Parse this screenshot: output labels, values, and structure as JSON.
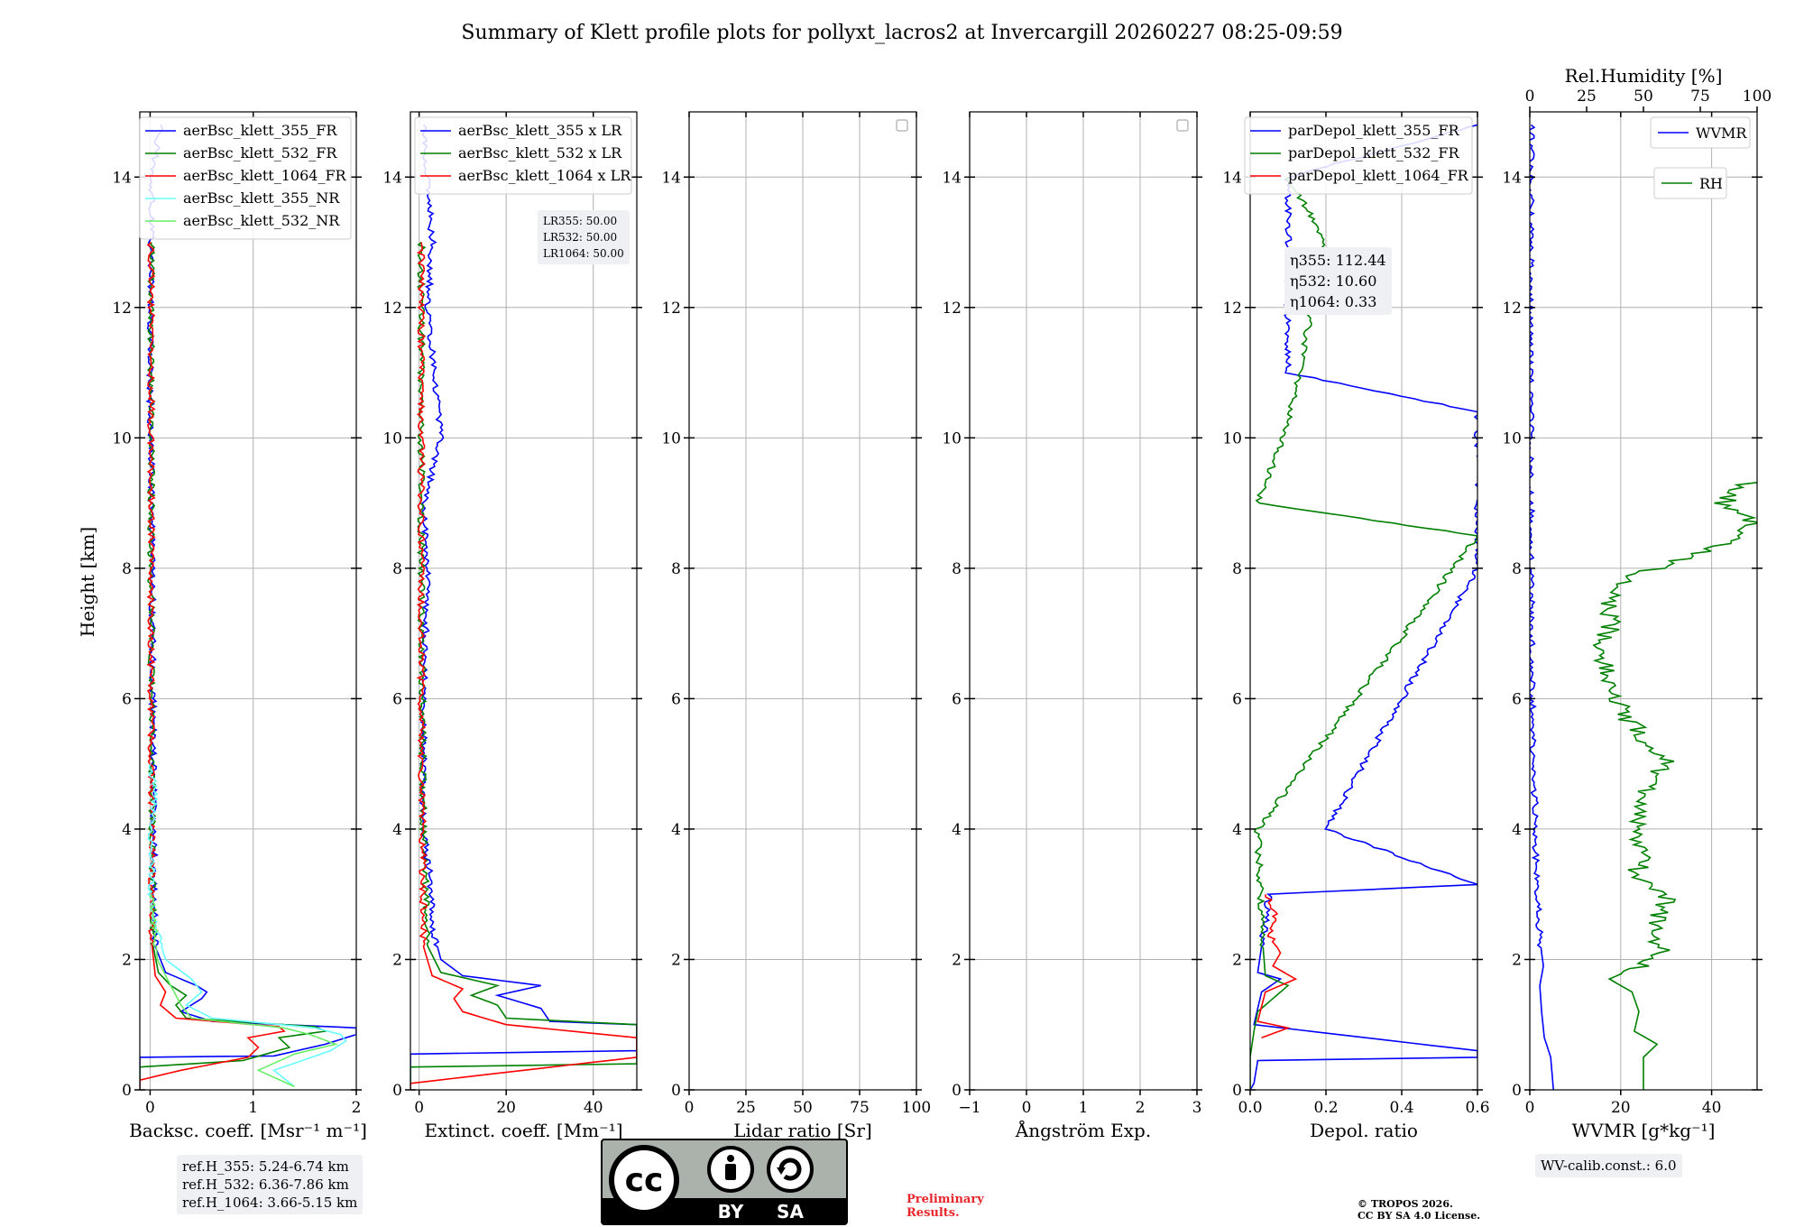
{
  "title": "Summary of Klett profile plots for pollyxt_lacros2 at Invercargill 20260227 08:25-09:59",
  "ylabel": "Height [km]",
  "colors": {
    "blue": "#0000ff",
    "green": "#008000",
    "red": "#ff0000",
    "cyan": "#66ffff",
    "lightgreen": "#66ee66"
  },
  "info": {
    "ref355": "ref.H_355: 5.24-6.74 km",
    "ref532": "ref.H_532: 6.36-7.86 km",
    "ref1064": "ref.H_1064: 3.66-5.15 km",
    "wv_calib": "WV-calib.const.: 6.0",
    "lr355": "LR355: 50.00",
    "lr532": "LR532: 50.00",
    "lr1064": "LR1064: 50.00",
    "eta355": "η355: 112.44",
    "eta532": "η532: 10.60",
    "eta1064": "η1064: 0.33"
  },
  "footer": {
    "prelim_1": "Preliminary",
    "prelim_2": "Results.",
    "copyright_1": "© TROPOS 2026.",
    "copyright_2": "CC BY SA 4.0 License.",
    "cc_text": "cc",
    "cc_by": "BY",
    "cc_sa": "SA"
  },
  "chart_data": [
    {
      "type": "line",
      "xlabel": "Backsc. coeff. [Msr⁻¹ m⁻¹]",
      "xlim": [
        -0.1,
        2
      ],
      "ylim": [
        0,
        15
      ],
      "xticks": [
        0,
        1,
        2
      ],
      "yticks": [
        0,
        2,
        4,
        6,
        8,
        10,
        12,
        14
      ],
      "legend_position": "top-right",
      "series": [
        {
          "name": "aerBsc_klett_355_FR",
          "color": "blue",
          "profile": [
            [
              0.0,
              -0.1
            ],
            [
              0.5,
              -0.1
            ],
            [
              0.52,
              1.2
            ],
            [
              0.7,
              1.7
            ],
            [
              0.85,
              2.0
            ],
            [
              0.95,
              2.0
            ],
            [
              1.05,
              0.6
            ],
            [
              1.2,
              0.3
            ],
            [
              1.4,
              0.5
            ],
            [
              1.5,
              0.55
            ],
            [
              1.6,
              0.45
            ],
            [
              1.8,
              0.15
            ],
            [
              2.2,
              0.05
            ],
            [
              3,
              0.04
            ],
            [
              5,
              0.03
            ],
            [
              8,
              0.02
            ],
            [
              11,
              0.0
            ],
            [
              14,
              0.02
            ],
            [
              14.8,
              0.1
            ]
          ]
        },
        {
          "name": "aerBsc_klett_532_FR",
          "color": "green",
          "profile": [
            [
              0.0,
              -0.1
            ],
            [
              0.35,
              -0.1
            ],
            [
              0.45,
              0.9
            ],
            [
              0.65,
              1.35
            ],
            [
              0.8,
              1.25
            ],
            [
              0.9,
              1.7
            ],
            [
              0.97,
              1.6
            ],
            [
              1.1,
              0.35
            ],
            [
              1.3,
              0.25
            ],
            [
              1.45,
              0.35
            ],
            [
              1.6,
              0.2
            ],
            [
              1.8,
              0.08
            ],
            [
              2.2,
              0.03
            ],
            [
              4,
              0.02
            ],
            [
              8,
              0.01
            ],
            [
              13,
              0.01
            ]
          ]
        },
        {
          "name": "aerBsc_klett_1064_FR",
          "color": "red",
          "profile": [
            [
              0.0,
              -0.1
            ],
            [
              0.15,
              -0.1
            ],
            [
              0.3,
              0.3
            ],
            [
              0.5,
              0.95
            ],
            [
              0.65,
              1.05
            ],
            [
              0.8,
              0.95
            ],
            [
              0.9,
              1.3
            ],
            [
              0.97,
              1.25
            ],
            [
              1.1,
              0.25
            ],
            [
              1.3,
              0.1
            ],
            [
              1.5,
              0.15
            ],
            [
              1.75,
              0.05
            ],
            [
              2.2,
              0.02
            ],
            [
              6,
              0.01
            ],
            [
              13,
              0.01
            ]
          ]
        },
        {
          "name": "aerBsc_klett_355_NR",
          "color": "cyan",
          "profile": [
            [
              0.05,
              1.4
            ],
            [
              0.3,
              1.2
            ],
            [
              0.6,
              1.75
            ],
            [
              0.75,
              1.9
            ],
            [
              0.85,
              1.85
            ],
            [
              0.95,
              1.6
            ],
            [
              1.1,
              0.6
            ],
            [
              1.3,
              0.35
            ],
            [
              1.5,
              0.5
            ],
            [
              1.7,
              0.4
            ],
            [
              2.0,
              0.15
            ],
            [
              2.5,
              0.05
            ],
            [
              3,
              0.0
            ],
            [
              3.5,
              0.02
            ],
            [
              4,
              0.0
            ],
            [
              4.5,
              0.05
            ],
            [
              5.0,
              0.0
            ]
          ]
        },
        {
          "name": "aerBsc_klett_532_NR",
          "color": "lightgreen",
          "profile": [
            [
              0.05,
              1.4
            ],
            [
              0.3,
              1.05
            ],
            [
              0.55,
              1.4
            ],
            [
              0.7,
              1.8
            ],
            [
              0.85,
              1.55
            ],
            [
              0.95,
              1.3
            ],
            [
              1.1,
              0.4
            ],
            [
              1.3,
              0.3
            ],
            [
              1.6,
              0.2
            ],
            [
              2.0,
              0.07
            ],
            [
              3,
              0.02
            ]
          ]
        }
      ]
    },
    {
      "type": "line",
      "xlabel": "Extinct. coeff. [Mm⁻¹]",
      "xlim": [
        -2,
        50
      ],
      "ylim": [
        0,
        15
      ],
      "xticks": [
        0,
        20,
        40
      ],
      "yticks": [
        0,
        2,
        4,
        6,
        8,
        10,
        12,
        14
      ],
      "legend_position": "top-right",
      "series": [
        {
          "name": "aerBsc_klett_355 x LR",
          "color": "blue",
          "profile": [
            [
              0.0,
              -2
            ],
            [
              0.55,
              -2
            ],
            [
              0.6,
              50
            ],
            [
              0.9,
              50
            ],
            [
              1.0,
              50
            ],
            [
              1.05,
              30
            ],
            [
              1.25,
              28
            ],
            [
              1.45,
              18
            ],
            [
              1.6,
              28
            ],
            [
              1.75,
              10
            ],
            [
              2.0,
              5
            ],
            [
              2.5,
              3
            ],
            [
              3,
              3
            ],
            [
              4,
              1
            ],
            [
              6,
              1
            ],
            [
              8,
              2
            ],
            [
              9,
              1
            ],
            [
              10,
              5
            ],
            [
              12,
              2
            ],
            [
              13,
              3
            ],
            [
              14.8,
              1
            ]
          ]
        },
        {
          "name": "aerBsc_klett_532 x LR",
          "color": "green",
          "profile": [
            [
              0.0,
              -2
            ],
            [
              0.35,
              -2
            ],
            [
              0.4,
              50
            ],
            [
              1.0,
              50
            ],
            [
              1.1,
              20
            ],
            [
              1.3,
              18
            ],
            [
              1.45,
              12
            ],
            [
              1.6,
              18
            ],
            [
              1.8,
              5
            ],
            [
              2.2,
              2
            ],
            [
              4,
              1
            ],
            [
              8,
              0.5
            ],
            [
              13,
              0.5
            ]
          ]
        },
        {
          "name": "aerBsc_klett_1064 x LR",
          "color": "red",
          "profile": [
            [
              0.0,
              -2
            ],
            [
              0.1,
              -2
            ],
            [
              0.5,
              50
            ],
            [
              0.8,
              50
            ],
            [
              1.0,
              20
            ],
            [
              1.2,
              10
            ],
            [
              1.4,
              8
            ],
            [
              1.55,
              10
            ],
            [
              1.75,
              3
            ],
            [
              2.2,
              1
            ],
            [
              6,
              0.5
            ],
            [
              13,
              0.5
            ]
          ]
        }
      ]
    },
    {
      "type": "line",
      "xlabel": "Lidar ratio [Sr]",
      "xlim": [
        0,
        100
      ],
      "ylim": [
        0,
        15
      ],
      "xticks": [
        0,
        25,
        50,
        75,
        100
      ],
      "yticks": [
        0,
        2,
        4,
        6,
        8,
        10,
        12,
        14
      ],
      "series": []
    },
    {
      "type": "line",
      "xlabel": "Ångström Exp.",
      "xlim": [
        -1,
        3
      ],
      "ylim": [
        0,
        15
      ],
      "xticks": [
        -1,
        0,
        1,
        2,
        3
      ],
      "yticks": [
        0,
        2,
        4,
        6,
        8,
        10,
        12,
        14
      ],
      "series": []
    },
    {
      "type": "line",
      "xlabel": "Depol. ratio",
      "xlim": [
        0,
        0.6
      ],
      "ylim": [
        0,
        15
      ],
      "xticks": [
        0.0,
        0.2,
        0.4,
        0.6
      ],
      "xtick_labels": [
        "0.0",
        "0.2",
        "0.4",
        "0.6"
      ],
      "yticks": [
        0,
        2,
        4,
        6,
        8,
        10,
        12,
        14
      ],
      "legend_position": "top-right",
      "series": [
        {
          "name": "parDepol_klett_355_FR",
          "color": "blue",
          "profile": [
            [
              0.0,
              0.0
            ],
            [
              0.1,
              0.01
            ],
            [
              0.45,
              0.02
            ],
            [
              0.5,
              0.6
            ],
            [
              0.6,
              0.6
            ],
            [
              1.0,
              0.01
            ],
            [
              1.5,
              0.03
            ],
            [
              1.7,
              0.08
            ],
            [
              1.8,
              0.02
            ],
            [
              3,
              0.05
            ],
            [
              3.15,
              0.6
            ],
            [
              4,
              0.2
            ],
            [
              8,
              0.6
            ],
            [
              10.4,
              0.6
            ],
            [
              11,
              0.1
            ],
            [
              14,
              0.1
            ],
            [
              14.8,
              0.6
            ]
          ]
        },
        {
          "name": "parDepol_klett_532_FR",
          "color": "green",
          "profile": [
            [
              0.0,
              0.0
            ],
            [
              0.5,
              0.0
            ],
            [
              0.9,
              0.01
            ],
            [
              1.2,
              0.02
            ],
            [
              1.6,
              0.1
            ],
            [
              1.75,
              0.04
            ],
            [
              2.5,
              0.03
            ],
            [
              4,
              0.02
            ],
            [
              8.5,
              0.6
            ],
            [
              9,
              0.02
            ],
            [
              10.2,
              0.1
            ],
            [
              13,
              0.2
            ],
            [
              14,
              0.1
            ]
          ]
        },
        {
          "name": "parDepol_klett_1064_FR",
          "color": "red",
          "profile": [
            [
              0.8,
              0.03
            ],
            [
              0.95,
              0.1
            ],
            [
              1.05,
              0.02
            ],
            [
              1.5,
              0.04
            ],
            [
              1.7,
              0.12
            ],
            [
              1.9,
              0.06
            ],
            [
              2.1,
              0.08
            ],
            [
              2.4,
              0.05
            ],
            [
              2.7,
              0.07
            ],
            [
              3.0,
              0.04
            ]
          ]
        }
      ]
    },
    {
      "type": "line",
      "xlabel": "WVMR [g*kg⁻¹]",
      "x2label": "Rel.Humidity [%]",
      "xlim": [
        0,
        50
      ],
      "x2lim": [
        0,
        100
      ],
      "ylim": [
        0,
        15
      ],
      "xticks": [
        0,
        20,
        40
      ],
      "x2ticks": [
        0,
        25,
        50,
        75,
        100
      ],
      "yticks": [
        0,
        2,
        4,
        6,
        8,
        10,
        12,
        14
      ],
      "series": [
        {
          "name": "WVMR",
          "color": "blue",
          "profile": [
            [
              0.0,
              5.2
            ],
            [
              0.5,
              4.6
            ],
            [
              0.8,
              3.2
            ],
            [
              1.2,
              2.6
            ],
            [
              1.6,
              2.2
            ],
            [
              1.9,
              3.0
            ],
            [
              2.1,
              2.6
            ],
            [
              2.5,
              2.0
            ],
            [
              3.0,
              1.6
            ],
            [
              4.0,
              1.2
            ],
            [
              5.0,
              0.9
            ],
            [
              6.0,
              0.5
            ],
            [
              7.0,
              0.3
            ],
            [
              9.0,
              0.2
            ],
            [
              11.0,
              0.1
            ],
            [
              13.0,
              0.15
            ],
            [
              14.8,
              0.3
            ]
          ]
        },
        {
          "name": "RH",
          "color": "green",
          "profile": [
            [
              0.0,
              50
            ],
            [
              0.5,
              50
            ],
            [
              0.7,
              56
            ],
            [
              0.9,
              46
            ],
            [
              1.2,
              48
            ],
            [
              1.5,
              45
            ],
            [
              1.7,
              35
            ],
            [
              1.9,
              48
            ],
            [
              2.1,
              60
            ],
            [
              2.4,
              54
            ],
            [
              2.8,
              58
            ],
            [
              3.0,
              60
            ],
            [
              3.3,
              46
            ],
            [
              3.6,
              52
            ],
            [
              4.0,
              45
            ],
            [
              4.5,
              50
            ],
            [
              5.0,
              60
            ],
            [
              5.2,
              55
            ],
            [
              5.8,
              40
            ],
            [
              6.2,
              36
            ],
            [
              6.7,
              30
            ],
            [
              7.1,
              36
            ],
            [
              7.5,
              33
            ],
            [
              7.8,
              40
            ],
            [
              8.0,
              55
            ],
            [
              8.3,
              80
            ],
            [
              8.7,
              100
            ],
            [
              9.0,
              85
            ],
            [
              9.4,
              100
            ]
          ]
        }
      ]
    }
  ]
}
